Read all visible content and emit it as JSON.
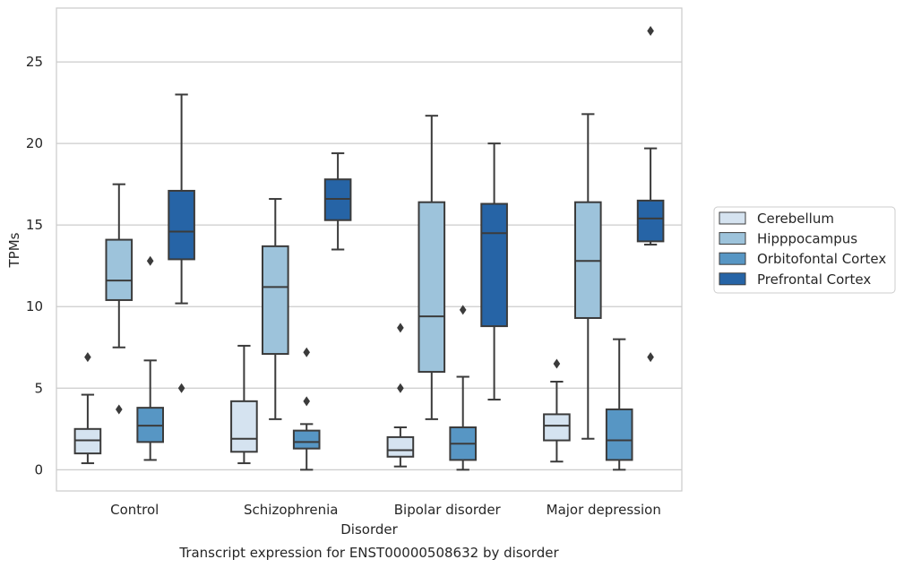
{
  "chart_data": {
    "type": "boxplot",
    "title": "",
    "caption": "Transcript expression for ENST00000508632 by disorder",
    "xlabel": "Disorder",
    "ylabel": "TPMs",
    "ylim": [
      -1.3,
      28.3
    ],
    "yticks": [
      0,
      5,
      10,
      15,
      20,
      25
    ],
    "grid": "horizontal",
    "legend_position": "right",
    "categories": [
      "Control",
      "Schizophrenia",
      "Bipolar disorder",
      "Major depression"
    ],
    "series": [
      {
        "name": "Cerebellum",
        "color": "#d5e3f0",
        "boxes": [
          {
            "whisker_low": 0.4,
            "q1": 1.0,
            "median": 1.8,
            "q3": 2.5,
            "whisker_high": 4.6,
            "outliers": [
              6.9
            ]
          },
          {
            "whisker_low": 0.4,
            "q1": 1.1,
            "median": 1.9,
            "q3": 4.2,
            "whisker_high": 7.6,
            "outliers": []
          },
          {
            "whisker_low": 0.2,
            "q1": 0.8,
            "median": 1.2,
            "q3": 2.0,
            "whisker_high": 2.6,
            "outliers": [
              5.0,
              8.7
            ]
          },
          {
            "whisker_low": 0.5,
            "q1": 1.8,
            "median": 2.7,
            "q3": 3.4,
            "whisker_high": 5.4,
            "outliers": [
              6.5
            ]
          }
        ]
      },
      {
        "name": "Hipppocampus",
        "color": "#9dc3db",
        "boxes": [
          {
            "whisker_low": 7.5,
            "q1": 10.4,
            "median": 11.6,
            "q3": 14.1,
            "whisker_high": 17.5,
            "outliers": [
              3.7
            ]
          },
          {
            "whisker_low": 3.1,
            "q1": 7.1,
            "median": 11.2,
            "q3": 13.7,
            "whisker_high": 16.6,
            "outliers": []
          },
          {
            "whisker_low": 3.1,
            "q1": 6.0,
            "median": 9.4,
            "q3": 16.4,
            "whisker_high": 21.7,
            "outliers": []
          },
          {
            "whisker_low": 1.9,
            "q1": 9.3,
            "median": 12.8,
            "q3": 16.4,
            "whisker_high": 21.8,
            "outliers": []
          }
        ]
      },
      {
        "name": "Orbitofontal Cortex",
        "color": "#5796c4",
        "boxes": [
          {
            "whisker_low": 0.6,
            "q1": 1.7,
            "median": 2.7,
            "q3": 3.8,
            "whisker_high": 6.7,
            "outliers": [
              12.8
            ]
          },
          {
            "whisker_low": 0.0,
            "q1": 1.3,
            "median": 1.7,
            "q3": 2.4,
            "whisker_high": 2.8,
            "outliers": [
              4.2,
              7.2
            ]
          },
          {
            "whisker_low": 0.0,
            "q1": 0.6,
            "median": 1.6,
            "q3": 2.6,
            "whisker_high": 5.7,
            "outliers": [
              9.8
            ]
          },
          {
            "whisker_low": 0.0,
            "q1": 0.6,
            "median": 1.8,
            "q3": 3.7,
            "whisker_high": 8.0,
            "outliers": []
          }
        ]
      },
      {
        "name": "Prefrontal Cortex",
        "color": "#2664a6",
        "boxes": [
          {
            "whisker_low": 10.2,
            "q1": 12.9,
            "median": 14.6,
            "q3": 17.1,
            "whisker_high": 23.0,
            "outliers": [
              5.0
            ]
          },
          {
            "whisker_low": 13.5,
            "q1": 15.3,
            "median": 16.6,
            "q3": 17.8,
            "whisker_high": 19.4,
            "outliers": []
          },
          {
            "whisker_low": 4.3,
            "q1": 8.8,
            "median": 14.5,
            "q3": 16.3,
            "whisker_high": 20.0,
            "outliers": []
          },
          {
            "whisker_low": 13.8,
            "q1": 14.0,
            "median": 15.4,
            "q3": 16.5,
            "whisker_high": 19.7,
            "outliers": [
              6.9,
              26.9
            ]
          }
        ]
      }
    ]
  }
}
